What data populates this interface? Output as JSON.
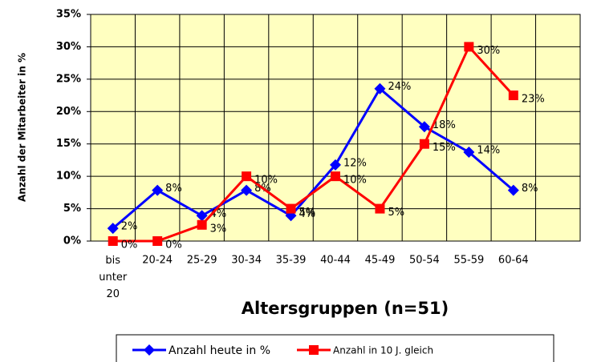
{
  "chart_data": {
    "type": "line",
    "title": "Altersgruppen (n=51)",
    "y_label": "Anzahl der Mitarbeiter in %",
    "categories": [
      "bis unter 20",
      "20-24",
      "25-29",
      "30-34",
      "35-39",
      "40-44",
      "45-49",
      "50-54",
      "55-59",
      "60-64",
      null
    ],
    "series": [
      {
        "name": "Anzahl heute in %",
        "color": "#0000ff",
        "marker": "diamond",
        "values": [
          1.96,
          7.84,
          3.92,
          7.84,
          3.92,
          11.76,
          23.53,
          17.65,
          13.73,
          7.84,
          null
        ],
        "value_labels": [
          "2%",
          "8%",
          "4%",
          "8%",
          "4%",
          "12%",
          "24%",
          "18%",
          "14%",
          "8%",
          null
        ]
      },
      {
        "name": "Anzahl in 10 J. gleich",
        "color": "#ff0000",
        "marker": "square",
        "values": [
          0,
          0,
          2.5,
          10,
          5,
          10,
          5,
          15,
          30,
          22.5,
          null
        ],
        "value_labels": [
          "0%",
          "0%",
          "3%",
          "10%",
          "5%",
          "10%",
          "5%",
          "15%",
          "30%",
          "23%",
          null
        ]
      }
    ],
    "ylim": [
      0,
      35
    ],
    "yticks": [
      {
        "value": 0,
        "label": "0%"
      },
      {
        "value": 5,
        "label": "5%"
      },
      {
        "value": 10,
        "label": "10%"
      },
      {
        "value": 15,
        "label": "15%"
      },
      {
        "value": 20,
        "label": "20%"
      },
      {
        "value": 25,
        "label": "25%"
      },
      {
        "value": 30,
        "label": "30%"
      },
      {
        "value": 35,
        "label": "35%"
      }
    ],
    "grid": true,
    "plot_background": "#ffffc0",
    "legend": "bottom"
  }
}
